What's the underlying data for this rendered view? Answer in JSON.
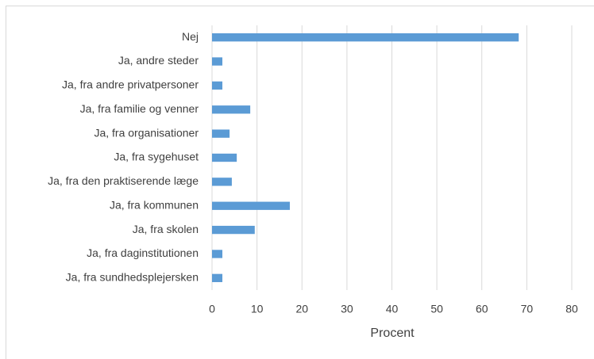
{
  "chart_data": {
    "type": "barh",
    "categories": [
      "Nej",
      "Ja, andre steder",
      "Ja, fra andre privatpersoner",
      "Ja, fra familie og venner",
      "Ja, fra organisationer",
      "Ja, fra sygehuset",
      "Ja, fra den praktiserende læge",
      "Ja, fra kommunen",
      "Ja, fra skolen",
      "Ja, fra daginstitutionen",
      "Ja, fra sundhedsplejersken"
    ],
    "values": [
      68.2,
      2.3,
      2.3,
      8.5,
      3.9,
      5.5,
      4.4,
      17.3,
      9.5,
      2.3,
      2.3
    ],
    "color": "#5b9bd5",
    "xlabel": "Procent",
    "xlim": [
      0,
      80
    ],
    "xticks": [
      0,
      10,
      20,
      30,
      40,
      50,
      60,
      70,
      80
    ],
    "grid": true
  }
}
